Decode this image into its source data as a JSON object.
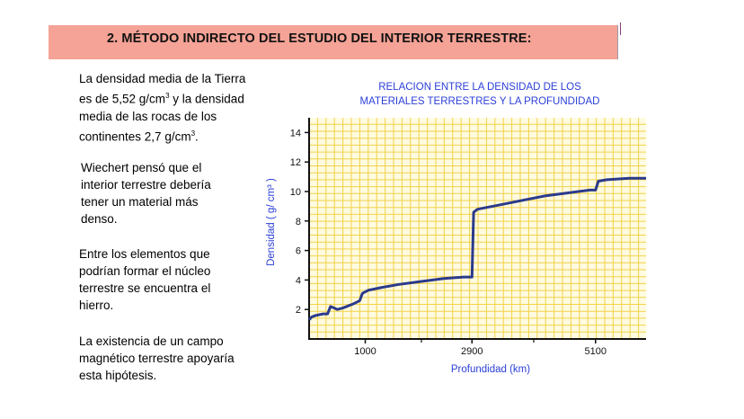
{
  "header": {
    "title": "2. MÉTODO INDIRECTO DEL ESTUDIO DEL INTERIOR TERRESTRE:"
  },
  "paragraphs": {
    "p1_line1": "La densidad media de la Tierra",
    "p1_line2_a": "es de 5,52 g/cm",
    "p1_line2_sup": "3",
    "p1_line2_b": " y la densidad",
    "p1_line3": "media de las rocas de los",
    "p1_line4_a": "continentes 2,7 g/cm",
    "p1_line4_sup": "3",
    "p1_line4_b": ".",
    "p2_line1": "Wiechert pensó que el",
    "p2_line2": "interior terrestre debería",
    "p2_line3": "tener un material más",
    "p2_line4": "denso.",
    "p3_line1": "Entre los elementos que",
    "p3_line2": "podrían formar el núcleo",
    "p3_line3": "terrestre se encuentra el",
    "p3_line4": "hierro.",
    "p4_line1": "La existencia de un campo",
    "p4_line2": "magnético terrestre apoyaría",
    "p4_line3": "esta hipótesis."
  },
  "chart_data": {
    "type": "line",
    "title_lines": [
      "RELACION ENTRE LA DENSIDAD DE LOS",
      "MATERIALES TERRESTRES Y LA PROFUNDIDAD"
    ],
    "xlabel": "Profundidad (km)",
    "ylabel": "Densidad ( g/ cm³ )",
    "x_ticks": [
      "1000",
      "2900",
      "5100"
    ],
    "y_ticks": [
      "2",
      "4",
      "6",
      "8",
      "10",
      "12",
      "14"
    ],
    "ylim": [
      0,
      15
    ],
    "grid": true,
    "colors": {
      "line": "#2b3a8c",
      "grid": "#f2d24a",
      "background": "#fffbe0",
      "text": "#2b3fd8"
    },
    "series": [
      {
        "x": [
          0,
          50,
          120,
          250,
          330,
          380,
          450,
          500,
          600,
          800,
          900,
          950,
          1050,
          1300,
          1600,
          2000,
          2400,
          2750,
          2900,
          2930,
          3000,
          3400,
          3800,
          4200,
          4600,
          5000,
          5100,
          5150,
          5300,
          5700,
          6000
        ],
        "y": [
          1.3,
          1.5,
          1.6,
          1.7,
          1.7,
          2.2,
          2.1,
          2.0,
          2.1,
          2.4,
          2.6,
          3.1,
          3.3,
          3.5,
          3.7,
          3.9,
          4.1,
          4.2,
          4.2,
          8.6,
          8.8,
          9.1,
          9.4,
          9.7,
          9.9,
          10.1,
          10.1,
          10.7,
          10.8,
          10.9,
          10.9
        ]
      }
    ]
  }
}
